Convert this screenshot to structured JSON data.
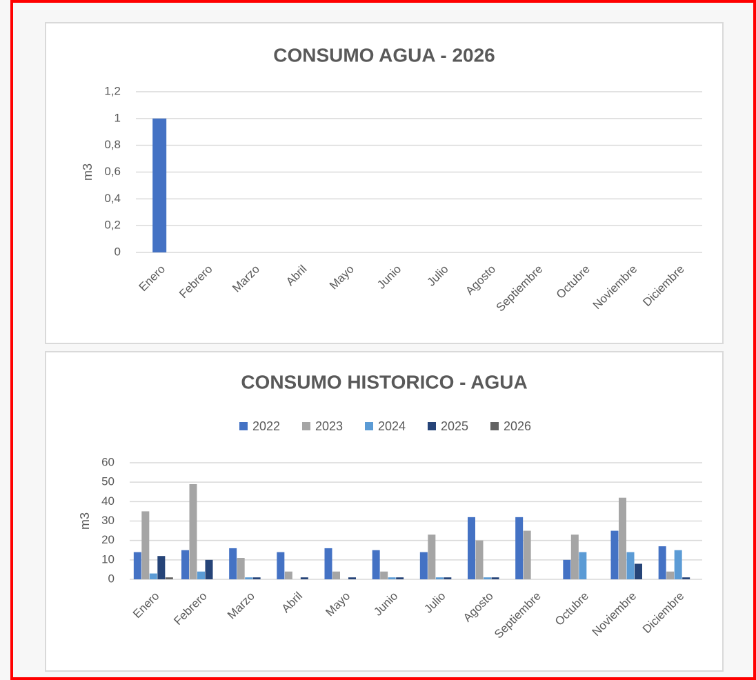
{
  "chart_data": [
    {
      "type": "bar",
      "title": "CONSUMO AGUA - 2026",
      "y_label": "m3",
      "categories": [
        "Enero",
        "Febrero",
        "Marzo",
        "Abril",
        "Mayo",
        "Junio",
        "Julio",
        "Agosto",
        "Septiembre",
        "Octubre",
        "Noviembre",
        "Diciembre"
      ],
      "values": [
        1,
        null,
        null,
        null,
        null,
        null,
        null,
        null,
        null,
        null,
        null,
        null
      ],
      "color": "#4472c4",
      "ylim": [
        0,
        1.2
      ],
      "yticks": [
        0,
        {
          "value": 0.2,
          "label": "0,2"
        },
        {
          "value": 0.4,
          "label": "0,4"
        },
        {
          "value": 0.6,
          "label": "0,6"
        },
        {
          "value": 0.8,
          "label": "0,8"
        },
        1,
        {
          "value": 1.2,
          "label": "1,2"
        }
      ],
      "grid": true
    },
    {
      "type": "grouped_bar",
      "title": "CONSUMO HISTORICO - AGUA",
      "y_label": "m3",
      "categories": [
        "Enero",
        "Febrero",
        "Marzo",
        "Abril",
        "Mayo",
        "Junio",
        "Julio",
        "Agosto",
        "Septiembre",
        "Octubre",
        "Noviembre",
        "Diciembre"
      ],
      "series": [
        {
          "name": "2022",
          "color": "#4472c4",
          "values": [
            14,
            15,
            16,
            14,
            16,
            15,
            14,
            32,
            32,
            10,
            25,
            17
          ]
        },
        {
          "name": "2023",
          "color": "#a5a5a5",
          "values": [
            35,
            49,
            11,
            4,
            4,
            4,
            23,
            20,
            25,
            23,
            42,
            4
          ]
        },
        {
          "name": "2024",
          "color": "#5b9bd5",
          "values": [
            3,
            4,
            1,
            null,
            null,
            1,
            1,
            1,
            null,
            14,
            14,
            15
          ]
        },
        {
          "name": "2025",
          "color": "#264478",
          "values": [
            12,
            10,
            1,
            1,
            1,
            1,
            1,
            1,
            null,
            null,
            8,
            1
          ]
        },
        {
          "name": "2026",
          "color": "#636363",
          "values": [
            1,
            null,
            null,
            null,
            null,
            null,
            null,
            null,
            null,
            null,
            null,
            null
          ]
        }
      ],
      "legend": "top",
      "ylim": [
        0,
        60
      ],
      "yticks": [
        0,
        10,
        20,
        30,
        40,
        50,
        60
      ],
      "grid": true
    }
  ]
}
